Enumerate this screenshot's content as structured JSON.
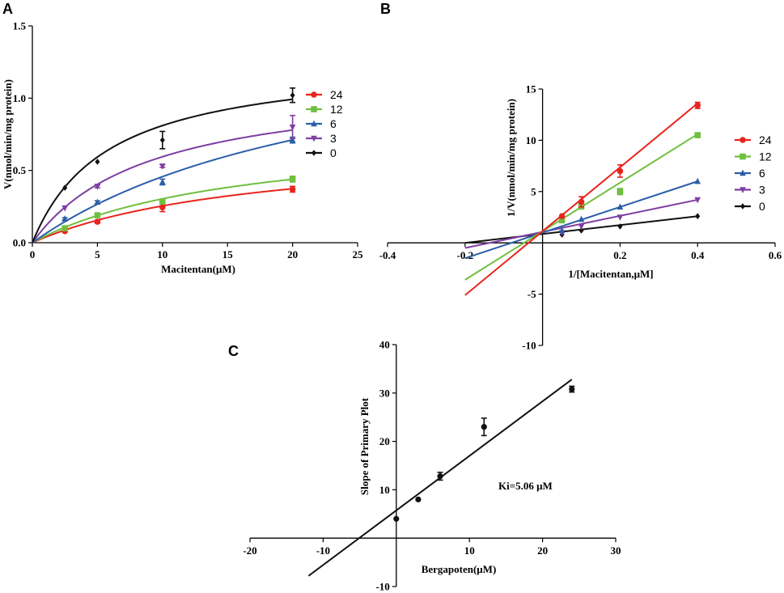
{
  "chart_data": [
    {
      "panel": "A",
      "type": "line",
      "subtype": "michaelis-menten",
      "xlabel": "Macitentan(μM)",
      "ylabel": "V(nmol/min/mg protein)",
      "xlim": [
        0,
        25
      ],
      "ylim": [
        0,
        1.5
      ],
      "xticks": [
        0,
        5,
        10,
        15,
        20,
        25
      ],
      "yticks": [
        0.0,
        0.5,
        1.0,
        1.5
      ],
      "xtick_labels": [
        "0",
        "5",
        "10",
        "15",
        "20",
        "25"
      ],
      "ytick_labels": [
        "0.0",
        "0.5",
        "1.0",
        "1.5"
      ],
      "legend_position": "right",
      "series": [
        {
          "name": "24",
          "color": "#e8241e",
          "marker": "circle",
          "x": [
            2.5,
            5,
            10,
            20
          ],
          "y": [
            0.08,
            0.145,
            0.245,
            0.37
          ],
          "err": [
            0.005,
            0.01,
            0.03,
            0.02
          ],
          "fit": {
            "vmax": 0.7,
            "km": 17.5
          }
        },
        {
          "name": "12",
          "color": "#70bf3f",
          "marker": "square",
          "x": [
            2.5,
            5,
            10,
            20
          ],
          "y": [
            0.1,
            0.19,
            0.285,
            0.44
          ],
          "err": [
            0.005,
            0.008,
            0.01,
            0.02
          ],
          "fit": {
            "vmax": 0.79,
            "km": 16
          }
        },
        {
          "name": "6",
          "color": "#2b5ea8",
          "marker": "triangle-up",
          "x": [
            2.5,
            5,
            10,
            20
          ],
          "y": [
            0.165,
            0.28,
            0.42,
            0.71
          ],
          "err": [
            0.008,
            0.01,
            0.02,
            0.02
          ],
          "fit": {
            "vmax": 1.6,
            "km": 25
          }
        },
        {
          "name": "3",
          "color": "#7e3fa3",
          "marker": "triangle-down",
          "x": [
            2.5,
            5,
            10,
            20
          ],
          "y": [
            0.24,
            0.39,
            0.53,
            0.8
          ],
          "err": [
            0.005,
            0.01,
            0.01,
            0.08
          ],
          "fit": {
            "vmax": 1.13,
            "km": 9
          }
        },
        {
          "name": "0",
          "color": "#111111",
          "marker": "diamond",
          "x": [
            2.5,
            5,
            10,
            20
          ],
          "y": [
            0.38,
            0.56,
            0.71,
            1.02
          ],
          "err": [
            0.005,
            0.005,
            0.06,
            0.05
          ],
          "fit": {
            "vmax": 1.28,
            "km": 5.8
          }
        }
      ]
    },
    {
      "panel": "B",
      "type": "line",
      "subtype": "lineweaver-burk",
      "xlabel": "1/[Macitentan,μM]",
      "ylabel": "1/V(nmol/min/mg protein)",
      "xlim": [
        -0.4,
        0.6
      ],
      "ylim": [
        -10,
        15
      ],
      "xticks": [
        -0.4,
        -0.2,
        0.2,
        0.4,
        0.6
      ],
      "yticks": [
        -10,
        -5,
        5,
        10,
        15
      ],
      "xtick_labels": [
        "-0.4",
        "-0.2",
        "0.2",
        "0.4",
        "0.6"
      ],
      "ytick_labels": [
        "-10",
        "-5",
        "5",
        "10",
        "15"
      ],
      "legend_position": "right",
      "series": [
        {
          "name": "24",
          "color": "#e8241e",
          "marker": "circle",
          "x": [
            0.05,
            0.1,
            0.2,
            0.4
          ],
          "y": [
            2.6,
            4.0,
            7.0,
            13.4
          ],
          "err": [
            0.1,
            0.5,
            0.6,
            0.3
          ],
          "line": [
            [
              -0.2,
              -5.1
            ],
            [
              0.4,
              13.6
            ]
          ]
        },
        {
          "name": "12",
          "color": "#70bf3f",
          "marker": "square",
          "x": [
            0.05,
            0.1,
            0.2,
            0.4
          ],
          "y": [
            2.2,
            3.6,
            5.0,
            10.5
          ],
          "err": [
            0.1,
            0.3,
            0.3,
            0.2
          ],
          "line": [
            [
              -0.2,
              -3.6
            ],
            [
              0.4,
              10.6
            ]
          ]
        },
        {
          "name": "6",
          "color": "#2b5ea8",
          "marker": "triangle-up",
          "x": [
            0.05,
            0.1,
            0.2,
            0.4
          ],
          "y": [
            1.2,
            2.3,
            3.5,
            6.0
          ],
          "err": [
            0.1,
            0.1,
            0.1,
            0.1
          ],
          "line": [
            [
              -0.2,
              -1.5
            ],
            [
              0.4,
              6.0
            ]
          ]
        },
        {
          "name": "3",
          "color": "#7e3fa3",
          "marker": "triangle-down",
          "x": [
            0.05,
            0.1,
            0.2,
            0.4
          ],
          "y": [
            1.0,
            1.6,
            2.5,
            4.2
          ],
          "err": [
            0.05,
            0.1,
            0.1,
            0.1
          ],
          "line": [
            [
              -0.2,
              -0.5
            ],
            [
              0.4,
              4.2
            ]
          ]
        },
        {
          "name": "0",
          "color": "#111111",
          "marker": "diamond",
          "x": [
            0.05,
            0.1,
            0.2,
            0.4
          ],
          "y": [
            0.8,
            1.2,
            1.6,
            2.6
          ],
          "err": [
            0.05,
            0.05,
            0.05,
            0.05
          ],
          "line": [
            [
              -0.2,
              0.0
            ],
            [
              0.4,
              2.6
            ]
          ]
        }
      ]
    },
    {
      "panel": "C",
      "type": "scatter",
      "subtype": "secondary-plot",
      "xlabel": "Bergapoten(μM)",
      "ylabel": "Slope of Primary Plot",
      "annotation": "Ki=5.06 μM",
      "xlim": [
        -20,
        30
      ],
      "ylim": [
        -10,
        40
      ],
      "xticks": [
        -20,
        -10,
        10,
        20,
        30
      ],
      "yticks": [
        -10,
        10,
        20,
        30,
        40
      ],
      "xtick_labels": [
        "-20",
        "-10",
        "10",
        "20",
        "30"
      ],
      "ytick_labels": [
        "-10",
        "10",
        "20",
        "30",
        "40"
      ],
      "color": "#111111",
      "points": {
        "x": [
          0,
          3,
          6,
          12,
          24
        ],
        "y": [
          4,
          8,
          12.8,
          23,
          30.8
        ],
        "err": [
          0,
          0,
          0.8,
          1.8,
          0.6
        ]
      },
      "line": [
        [
          -12,
          -7.8
        ],
        [
          24,
          32.8
        ]
      ]
    }
  ]
}
